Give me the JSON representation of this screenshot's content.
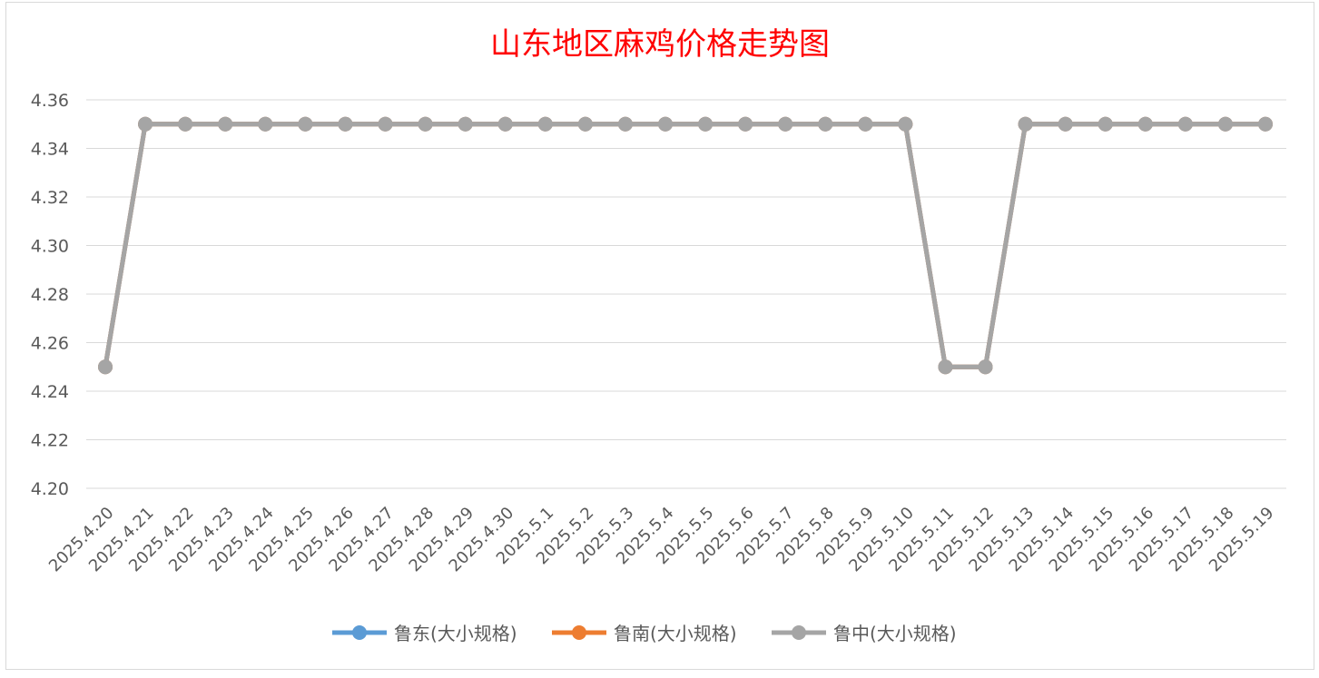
{
  "chart_data": {
    "type": "line",
    "title": "山东地区麻鸡价格走势图",
    "xlabel": "",
    "ylabel": "",
    "ylim": [
      4.2,
      4.36
    ],
    "yticks": [
      "4.20",
      "4.22",
      "4.24",
      "4.26",
      "4.28",
      "4.30",
      "4.32",
      "4.34",
      "4.36"
    ],
    "grid": true,
    "legend_position": "bottom",
    "categories": [
      "2025.4.20",
      "2025.4.21",
      "2025.4.22",
      "2025.4.23",
      "2025.4.24",
      "2025.4.25",
      "2025.4.26",
      "2025.4.27",
      "2025.4.28",
      "2025.4.29",
      "2025.4.30",
      "2025.5.1",
      "2025.5.2",
      "2025.5.3",
      "2025.5.4",
      "2025.5.5",
      "2025.5.6",
      "2025.5.7",
      "2025.5.8",
      "2025.5.9",
      "2025.5.10",
      "2025.5.11",
      "2025.5.12",
      "2025.5.13",
      "2025.5.14",
      "2025.5.15",
      "2025.5.16",
      "2025.5.17",
      "2025.5.18",
      "2025.5.19"
    ],
    "series": [
      {
        "name": "鲁东(大小规格)",
        "color": "#5b9bd5",
        "values": [
          4.25,
          4.35,
          4.35,
          4.35,
          4.35,
          4.35,
          4.35,
          4.35,
          4.35,
          4.35,
          4.35,
          4.35,
          4.35,
          4.35,
          4.35,
          4.35,
          4.35,
          4.35,
          4.35,
          4.35,
          4.35,
          4.25,
          4.25,
          4.35,
          4.35,
          4.35,
          4.35,
          4.35,
          4.35,
          4.35
        ]
      },
      {
        "name": "鲁南(大小规格)",
        "color": "#ed7d31",
        "values": [
          4.25,
          4.35,
          4.35,
          4.35,
          4.35,
          4.35,
          4.35,
          4.35,
          4.35,
          4.35,
          4.35,
          4.35,
          4.35,
          4.35,
          4.35,
          4.35,
          4.35,
          4.35,
          4.35,
          4.35,
          4.35,
          4.25,
          4.25,
          4.35,
          4.35,
          4.35,
          4.35,
          4.35,
          4.35,
          4.35
        ]
      },
      {
        "name": "鲁中(大小规格)",
        "color": "#a5a5a5",
        "values": [
          4.25,
          4.35,
          4.35,
          4.35,
          4.35,
          4.35,
          4.35,
          4.35,
          4.35,
          4.35,
          4.35,
          4.35,
          4.35,
          4.35,
          4.35,
          4.35,
          4.35,
          4.35,
          4.35,
          4.35,
          4.35,
          4.25,
          4.25,
          4.35,
          4.35,
          4.35,
          4.35,
          4.35,
          4.35,
          4.35
        ]
      }
    ]
  }
}
